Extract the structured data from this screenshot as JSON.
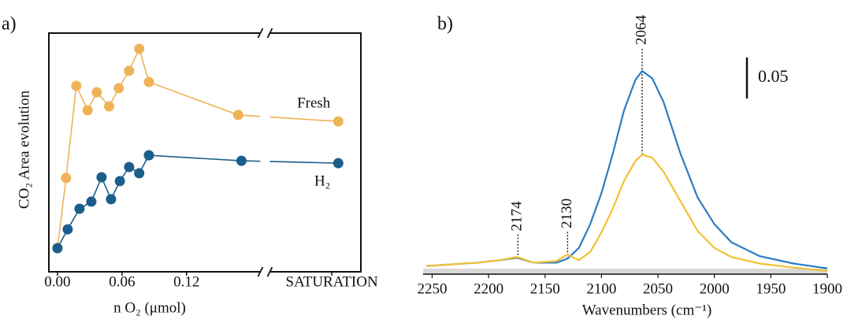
{
  "chart_data": [
    {
      "type": "line",
      "panel_label": "a)",
      "ylabel": "CO₂ Area evolution",
      "xlabel": "n O₂ (μmol)",
      "xlim": [
        -0.008,
        0.282
      ],
      "ylim": [
        0,
        100
      ],
      "xticks": [
        {
          "value": 0,
          "label": "0.00"
        },
        0.06,
        0.12,
        {
          "value": 0.255,
          "label": "SATURATION"
        }
      ],
      "x_break": 0.193,
      "markers": true,
      "series": [
        {
          "name": "Fresh",
          "color": "#efb357",
          "x": [
            0,
            0.008,
            0.0175,
            0.028,
            0.0366,
            0.048,
            0.057,
            0.0666,
            0.076,
            0.085,
            0.168,
            0.261
          ],
          "values": [
            9.9,
            39.3,
            77.9,
            67.7,
            75.2,
            69.3,
            76.9,
            84.2,
            93.4,
            79.5,
            65.7,
            63.0
          ]
        },
        {
          "name": "H₂",
          "color": "#1b5e8c",
          "x": [
            0,
            0.0095,
            0.0205,
            0.0315,
            0.041,
            0.0498,
            0.058,
            0.0666,
            0.076,
            0.085,
            0.171,
            0.261
          ],
          "values": [
            9.9,
            17.8,
            26.4,
            29.4,
            39.6,
            30.4,
            38.0,
            43.9,
            41.3,
            48.8,
            46.5,
            45.5
          ]
        }
      ]
    },
    {
      "type": "line",
      "panel_label": "b)",
      "xlabel": "Wavenumbers (cm⁻¹)",
      "xlim": [
        2258,
        1900
      ],
      "ylim": [
        0,
        0.3
      ],
      "xticks": [
        2250,
        2200,
        2150,
        2100,
        2050,
        2000,
        1950,
        1900
      ],
      "scale_bar": 0.05,
      "peak_labels": [
        2174,
        2130,
        2064
      ],
      "series": [
        {
          "color": "#2c7cc3",
          "x": [
            2255,
            2210,
            2190,
            2175,
            2160,
            2140,
            2130,
            2120,
            2110,
            2100,
            2090,
            2080,
            2070,
            2064,
            2055,
            2045,
            2030,
            2015,
            2000,
            1985,
            1960,
            1930,
            1900
          ],
          "values": [
            0.01,
            0.014,
            0.017,
            0.02,
            0.014,
            0.014,
            0.019,
            0.032,
            0.061,
            0.099,
            0.147,
            0.2,
            0.237,
            0.248,
            0.239,
            0.21,
            0.147,
            0.094,
            0.061,
            0.039,
            0.022,
            0.013,
            0.007
          ]
        },
        {
          "color": "#f1c232",
          "x": [
            2255,
            2210,
            2190,
            2175,
            2160,
            2140,
            2130,
            2120,
            2110,
            2100,
            2090,
            2080,
            2070,
            2064,
            2055,
            2045,
            2030,
            2015,
            2000,
            1985,
            1960,
            1930,
            1900
          ],
          "values": [
            0.01,
            0.014,
            0.017,
            0.021,
            0.014,
            0.016,
            0.024,
            0.017,
            0.027,
            0.051,
            0.08,
            0.114,
            0.138,
            0.146,
            0.142,
            0.125,
            0.089,
            0.053,
            0.032,
            0.021,
            0.013,
            0.008,
            0.004
          ]
        }
      ]
    }
  ]
}
